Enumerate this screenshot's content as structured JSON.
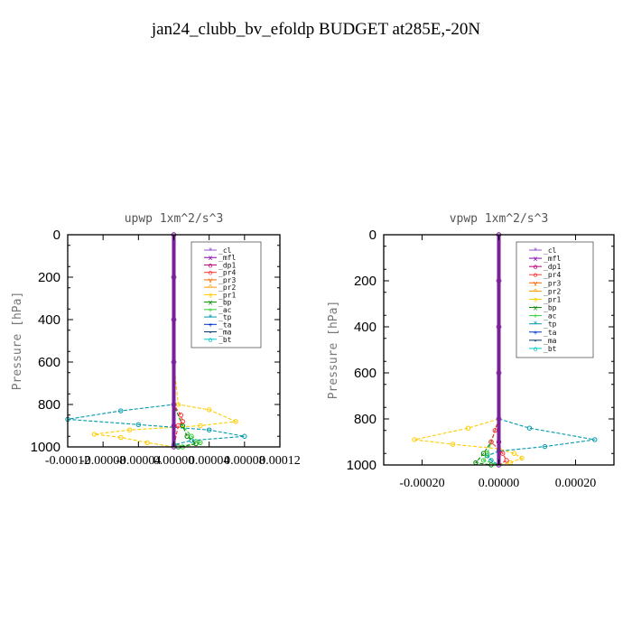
{
  "title": "jan24_clubb_bv_efoldp  BUDGET at285E,-20N",
  "chart_data": [
    {
      "type": "line",
      "title": "upwp   1xm^2/s^3",
      "ylabel": "Pressure [hPa]",
      "ylim": [
        0,
        1000
      ],
      "y_inverted": true,
      "xlim": [
        -0.00012,
        0.00012
      ],
      "x_ticks": [
        "-0.00012",
        "-0.00008",
        "-0.00004",
        "0.00000",
        "0.00004",
        "0.00008",
        "0.00012"
      ],
      "y_ticks": [
        "0",
        "200",
        "400",
        "600",
        "800",
        "1000"
      ],
      "legend": [
        "_cl",
        "_mfl",
        "_dp1",
        "_pr4",
        "_pr3",
        "_pr2",
        "_pr1",
        "_bp",
        "_ac",
        "_tp",
        "_ta",
        "_ma",
        "_bt"
      ],
      "series": [
        {
          "name": "_pr1",
          "color": "#ffcc00",
          "x": [
            0,
            0,
            0,
            0,
            5e-06,
            4e-05,
            7e-05,
            3e-05,
            -5e-05,
            -9e-05,
            -6e-05,
            -3e-05,
            0
          ],
          "y": [
            0,
            200,
            400,
            600,
            800,
            825,
            880,
            900,
            920,
            940,
            955,
            980,
            1000
          ]
        },
        {
          "name": "_tp",
          "color": "#0099aa",
          "x": [
            0,
            0,
            0,
            0,
            0,
            -6e-05,
            -0.00012,
            -4e-05,
            4e-05,
            8e-05,
            2e-05,
            0,
            0
          ],
          "y": [
            0,
            200,
            400,
            600,
            800,
            830,
            870,
            895,
            920,
            950,
            970,
            990,
            1000
          ]
        },
        {
          "name": "_ac",
          "color": "#33cc33",
          "x": [
            0,
            0,
            0,
            0,
            0,
            1e-05,
            2e-05,
            3e-05,
            1e-05
          ],
          "y": [
            0,
            200,
            400,
            600,
            800,
            900,
            950,
            980,
            1000
          ]
        },
        {
          "name": "_bp",
          "color": "#008800",
          "x": [
            0,
            0,
            0,
            0,
            0,
            1e-05,
            1.5e-05,
            2.5e-05,
            5e-06
          ],
          "y": [
            0,
            200,
            400,
            600,
            800,
            900,
            950,
            985,
            1000
          ]
        },
        {
          "name": "_pr4",
          "color": "#ff3333",
          "x": [
            0,
            0,
            0,
            0,
            0,
            8e-06,
            1e-05,
            5e-06,
            0
          ],
          "y": [
            0,
            200,
            400,
            600,
            800,
            850,
            880,
            900,
            1000
          ]
        },
        {
          "name": "_dp1",
          "color": "#bb0077",
          "x": [
            0,
            0,
            0,
            0,
            0,
            0,
            0
          ],
          "y": [
            0,
            200,
            400,
            600,
            800,
            900,
            1000
          ]
        },
        {
          "name": "_mfl",
          "color": "#8800aa",
          "x": [
            0,
            0,
            0,
            0,
            0,
            0
          ],
          "y": [
            0,
            200,
            400,
            600,
            800,
            1000
          ]
        },
        {
          "name": "_cl",
          "color": "#9955cc",
          "x": [
            0,
            0,
            0,
            0,
            0,
            0
          ],
          "y": [
            0,
            200,
            400,
            600,
            800,
            1000
          ]
        }
      ]
    },
    {
      "type": "line",
      "title": "vpwp   1xm^2/s^3",
      "ylabel": "Pressure [hPa]",
      "ylim": [
        0,
        1000
      ],
      "y_inverted": true,
      "xlim": [
        -0.0003,
        0.0003
      ],
      "x_ticks": [
        "-0.00020",
        "0.00000",
        "0.00020"
      ],
      "y_ticks": [
        "0",
        "200",
        "400",
        "600",
        "800",
        "1000"
      ],
      "legend": [
        "_cl",
        "_mfl",
        "_dp1",
        "_pr4",
        "_pr3",
        "_pr2",
        "_pr1",
        "_bp",
        "_ac",
        "_tp",
        "_ta",
        "_ma",
        "_bt"
      ],
      "series": [
        {
          "name": "_pr1",
          "color": "#ffcc00",
          "x": [
            0,
            0,
            0,
            0,
            0,
            -8e-05,
            -0.00022,
            -0.00012,
            0,
            4e-05,
            6e-05,
            3e-05,
            0
          ],
          "y": [
            0,
            200,
            400,
            600,
            800,
            840,
            890,
            910,
            930,
            950,
            970,
            990,
            1000
          ]
        },
        {
          "name": "_tp",
          "color": "#0099aa",
          "x": [
            0,
            0,
            0,
            0,
            0,
            8e-05,
            0.00025,
            0.00012,
            0,
            -3e-05,
            -2e-05,
            0
          ],
          "y": [
            0,
            200,
            400,
            600,
            800,
            840,
            890,
            920,
            940,
            960,
            980,
            1000
          ]
        },
        {
          "name": "_ac",
          "color": "#33cc33",
          "x": [
            0,
            0,
            0,
            0,
            0,
            -2e-05,
            -3e-05,
            -4e-05,
            0
          ],
          "y": [
            0,
            200,
            400,
            600,
            800,
            900,
            950,
            980,
            1000
          ]
        },
        {
          "name": "_bp",
          "color": "#008800",
          "x": [
            0,
            0,
            0,
            0,
            0,
            -2e-05,
            -4e-05,
            -6e-05,
            -2e-05
          ],
          "y": [
            0,
            200,
            400,
            600,
            800,
            900,
            950,
            990,
            1000
          ]
        },
        {
          "name": "_pr4",
          "color": "#ff3333",
          "x": [
            0,
            0,
            0,
            0,
            0,
            -1e-05,
            -2e-05,
            1e-05,
            2e-05,
            0
          ],
          "y": [
            0,
            200,
            400,
            600,
            800,
            850,
            900,
            950,
            980,
            1000
          ]
        },
        {
          "name": "_dp1",
          "color": "#bb0077",
          "x": [
            0,
            0,
            0,
            0,
            0,
            0,
            0
          ],
          "y": [
            0,
            200,
            400,
            600,
            800,
            900,
            1000
          ]
        },
        {
          "name": "_mfl",
          "color": "#8800aa",
          "x": [
            0,
            0,
            0,
            0,
            0,
            0
          ],
          "y": [
            0,
            200,
            400,
            600,
            800,
            1000
          ]
        },
        {
          "name": "_cl",
          "color": "#9955cc",
          "x": [
            0,
            0,
            0,
            0,
            0,
            0
          ],
          "y": [
            0,
            200,
            400,
            600,
            800,
            1000
          ]
        }
      ]
    }
  ]
}
